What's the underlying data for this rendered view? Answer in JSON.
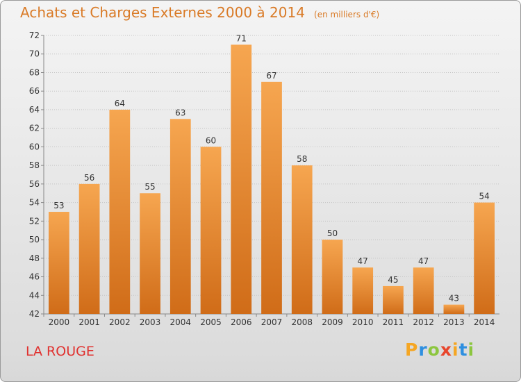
{
  "header": {
    "title": "Achats et Charges Externes 2000 à 2014",
    "subtitle": "(en milliers d'€)"
  },
  "footer": {
    "commune": "LA ROUGE",
    "brand": "Proxiti",
    "brand_colors": [
      "#f5a623",
      "#2e8fe0",
      "#8cc63f",
      "#e8452c",
      "#f5a623",
      "#2e8fe0",
      "#8cc63f"
    ]
  },
  "chart_data": {
    "type": "bar",
    "title": "Achats et Charges Externes 2000 à 2014",
    "subtitle": "(en milliers d'€)",
    "xlabel": "",
    "ylabel": "",
    "categories": [
      "2000",
      "2001",
      "2002",
      "2003",
      "2004",
      "2005",
      "2006",
      "2007",
      "2008",
      "2009",
      "2010",
      "2011",
      "2012",
      "2013",
      "2014"
    ],
    "values": [
      53,
      56,
      64,
      55,
      63,
      60,
      71,
      67,
      58,
      50,
      47,
      45,
      47,
      43,
      54
    ],
    "ylim": [
      42,
      72
    ],
    "yticks": [
      42,
      44,
      46,
      48,
      50,
      52,
      54,
      56,
      58,
      60,
      62,
      64,
      66,
      68,
      70,
      72
    ],
    "grid": true,
    "legend": "none",
    "bar_color_light": "#f6a650",
    "bar_color_dark": "#d06c18"
  }
}
